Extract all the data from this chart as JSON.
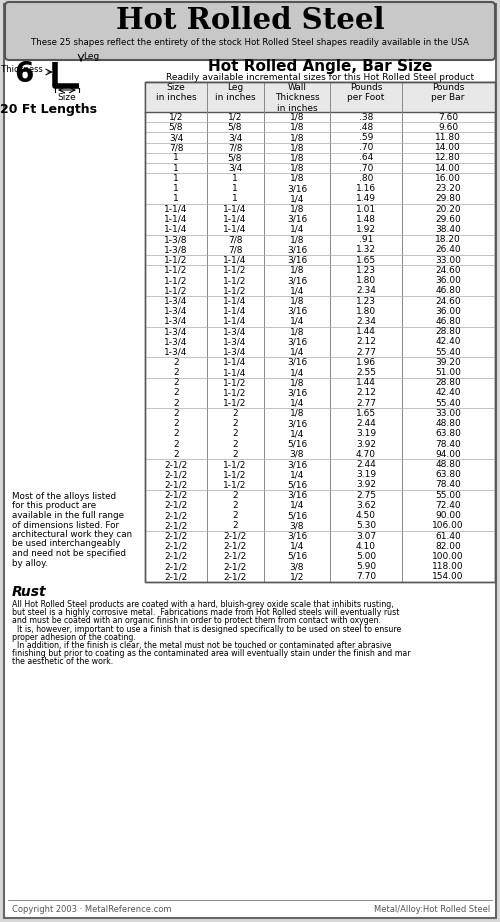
{
  "title": "Hot Rolled Steel",
  "subtitle": "These 25 shapes reflect the entirety of the stock Hot Rolled Steel shapes readily available in the USA",
  "section_title": "Hot Rolled Angle, Bar Size",
  "section_number": "6",
  "length_label": "20 Ft Lengths",
  "col_headers": [
    "Size\nin inches",
    "Leg\nin inches",
    "Wall\nThickness\nin inches",
    "Pounds\nper Foot",
    "Pounds\nper Bar"
  ],
  "rows": [
    [
      "1/2",
      "1/2",
      "1/8",
      ".38",
      "7.60"
    ],
    [
      "5/8",
      "5/8",
      "1/8",
      ".48",
      "9.60"
    ],
    [
      "3/4",
      "3/4",
      "1/8",
      ".59",
      "11.80"
    ],
    [
      "7/8",
      "7/8",
      "1/8",
      ".70",
      "14.00"
    ],
    [
      "1",
      "5/8",
      "1/8",
      ".64",
      "12.80"
    ],
    [
      "1",
      "3/4",
      "1/8",
      ".70",
      "14.00"
    ],
    [
      "1",
      "1",
      "1/8",
      ".80",
      "16.00"
    ],
    [
      "1",
      "1",
      "3/16",
      "1.16",
      "23.20"
    ],
    [
      "1",
      "1",
      "1/4",
      "1.49",
      "29.80"
    ],
    [
      "1-1/4",
      "1-1/4",
      "1/8",
      "1.01",
      "20.20"
    ],
    [
      "1-1/4",
      "1-1/4",
      "3/16",
      "1.48",
      "29.60"
    ],
    [
      "1-1/4",
      "1-1/4",
      "1/4",
      "1.92",
      "38.40"
    ],
    [
      "1-3/8",
      "7/8",
      "1/8",
      ".91",
      "18.20"
    ],
    [
      "1-3/8",
      "7/8",
      "3/16",
      "1.32",
      "26.40"
    ],
    [
      "1-1/2",
      "1-1/4",
      "3/16",
      "1.65",
      "33.00"
    ],
    [
      "1-1/2",
      "1-1/2",
      "1/8",
      "1.23",
      "24.60"
    ],
    [
      "1-1/2",
      "1-1/2",
      "3/16",
      "1.80",
      "36.00"
    ],
    [
      "1-1/2",
      "1-1/2",
      "1/4",
      "2.34",
      "46.80"
    ],
    [
      "1-3/4",
      "1-1/4",
      "1/8",
      "1.23",
      "24.60"
    ],
    [
      "1-3/4",
      "1-1/4",
      "3/16",
      "1.80",
      "36.00"
    ],
    [
      "1-3/4",
      "1-1/4",
      "1/4",
      "2.34",
      "46.80"
    ],
    [
      "1-3/4",
      "1-3/4",
      "1/8",
      "1.44",
      "28.80"
    ],
    [
      "1-3/4",
      "1-3/4",
      "3/16",
      "2.12",
      "42.40"
    ],
    [
      "1-3/4",
      "1-3/4",
      "1/4",
      "2.77",
      "55.40"
    ],
    [
      "2",
      "1-1/4",
      "3/16",
      "1.96",
      "39.20"
    ],
    [
      "2",
      "1-1/4",
      "1/4",
      "2.55",
      "51.00"
    ],
    [
      "2",
      "1-1/2",
      "1/8",
      "1.44",
      "28.80"
    ],
    [
      "2",
      "1-1/2",
      "3/16",
      "2.12",
      "42.40"
    ],
    [
      "2",
      "1-1/2",
      "1/4",
      "2.77",
      "55.40"
    ],
    [
      "2",
      "2",
      "1/8",
      "1.65",
      "33.00"
    ],
    [
      "2",
      "2",
      "3/16",
      "2.44",
      "48.80"
    ],
    [
      "2",
      "2",
      "1/4",
      "3.19",
      "63.80"
    ],
    [
      "2",
      "2",
      "5/16",
      "3.92",
      "78.40"
    ],
    [
      "2",
      "2",
      "3/8",
      "4.70",
      "94.00"
    ],
    [
      "2-1/2",
      "1-1/2",
      "3/16",
      "2.44",
      "48.80"
    ],
    [
      "2-1/2",
      "1-1/2",
      "1/4",
      "3.19",
      "63.80"
    ],
    [
      "2-1/2",
      "1-1/2",
      "5/16",
      "3.92",
      "78.40"
    ],
    [
      "2-1/2",
      "2",
      "3/16",
      "2.75",
      "55.00"
    ],
    [
      "2-1/2",
      "2",
      "1/4",
      "3.62",
      "72.40"
    ],
    [
      "2-1/2",
      "2",
      "5/16",
      "4.50",
      "90.00"
    ],
    [
      "2-1/2",
      "2",
      "3/8",
      "5.30",
      "106.00"
    ],
    [
      "2-1/2",
      "2-1/2",
      "3/16",
      "3.07",
      "61.40"
    ],
    [
      "2-1/2",
      "2-1/2",
      "1/4",
      "4.10",
      "82.00"
    ],
    [
      "2-1/2",
      "2-1/2",
      "5/16",
      "5.00",
      "100.00"
    ],
    [
      "2-1/2",
      "2-1/2",
      "3/8",
      "5.90",
      "118.00"
    ],
    [
      "2-1/2",
      "2-1/2",
      "1/2",
      "7.70",
      "154.00"
    ]
  ],
  "rust_title": "Rust",
  "rust_lines": [
    "All Hot Rolled Steel products are coated with a hard, bluish-grey oxide scale that inhibits rusting,",
    "but steel is a highly corrosive metal.  Fabrications made from Hot Rolled steels will eventually rust",
    "and must be coated with an organic finish in order to protect them from contact with oxygen.",
    "  It is, however, important to use a finish that is designed specifically to be used on steel to ensure",
    "proper adhesion of the coating.",
    "  In addition, if the finish is clear, the metal must not be touched or contaminated after abrasive",
    "finishing but prior to coating as the contaminated area will eventually stain under the finish and mar",
    "the aesthetic of the work."
  ],
  "side_note_lines": [
    "Most of the alloys listed",
    "for this product are",
    "available in the full range",
    "of dimensions listed. For",
    "architectural work they can",
    "be used interchangeably",
    "and need not be specified",
    "by alloy."
  ],
  "footer_left": "Copyright 2003 · MetalReference.com",
  "footer_right": "Metal/Alloy:Hot Rolled Steel",
  "header_bg": "#c8c8c8",
  "col_boundaries": [
    145,
    207,
    264,
    330,
    402,
    495
  ],
  "header_centers": [
    176,
    235,
    297,
    366,
    448
  ]
}
